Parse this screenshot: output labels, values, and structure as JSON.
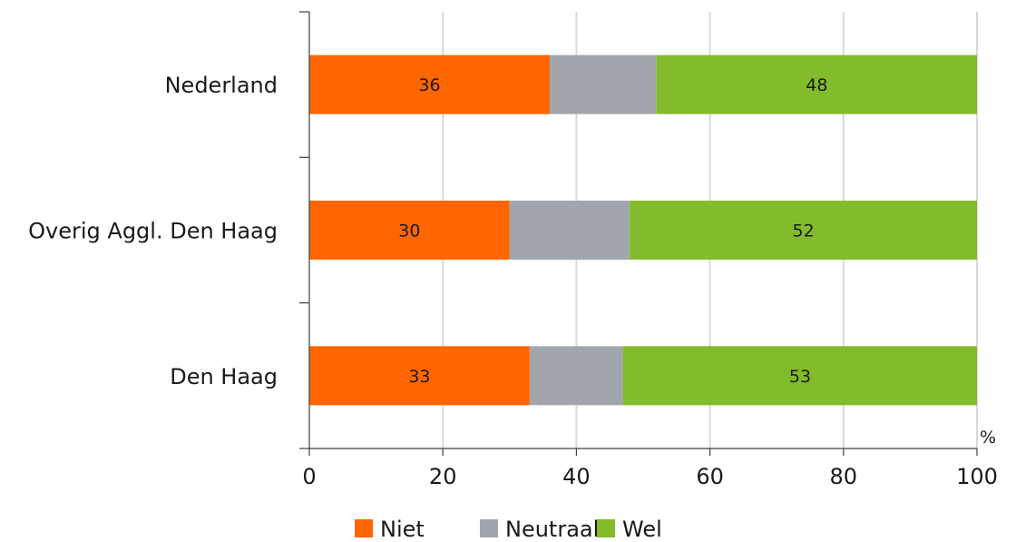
{
  "chart_data": {
    "type": "bar",
    "orientation": "horizontal",
    "stacked": true,
    "categories": [
      "Nederland",
      "Overig Aggl. Den Haag",
      "Den Haag"
    ],
    "series": [
      {
        "name": "Niet",
        "values": [
          36,
          30,
          33
        ],
        "color": "#ff6600",
        "labeled": true
      },
      {
        "name": "Neutraal",
        "values": [
          16,
          18,
          14
        ],
        "color": "#a0a6ab",
        "labeled": false
      },
      {
        "name": "Wel",
        "values": [
          48,
          52,
          53
        ],
        "color": "#82bc2a",
        "labeled": true
      }
    ],
    "x_ticks": [
      "0",
      "20",
      "40",
      "60",
      "80",
      "100"
    ],
    "xlim": [
      0,
      100
    ],
    "unit": "%",
    "grid": "vertical",
    "legend": "bottom"
  }
}
